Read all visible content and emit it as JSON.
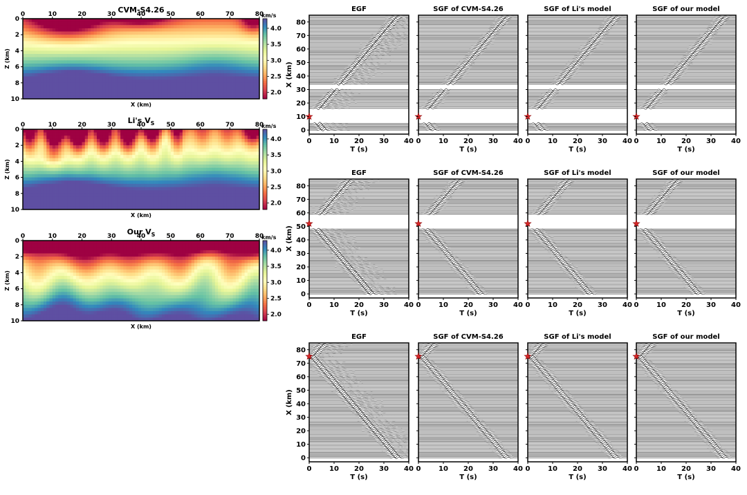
{
  "chart_data": {
    "velocity_panels": [
      {
        "id": "cvm",
        "title": "CVM-S4.26",
        "xlabel": "X (km)",
        "ylabel": "Z (km)",
        "xlim": [
          0,
          80
        ],
        "ylim": [
          0,
          10
        ],
        "xticks": [
          "0",
          "10",
          "20",
          "30",
          "40",
          "50",
          "60",
          "70",
          "80"
        ],
        "yticks": [
          "0",
          "2",
          "4",
          "6",
          "8",
          "10"
        ],
        "colorbar": {
          "unit": "km/s",
          "ticks": [
            "4.0",
            "3.5",
            "3.0",
            "2.5",
            "2.0"
          ],
          "range": [
            1.8,
            4.3
          ]
        }
      },
      {
        "id": "li",
        "title": "Li's V",
        "title_sub": "S",
        "xlabel": "X (km)",
        "ylabel": "Z (km)",
        "xlim": [
          0,
          80
        ],
        "ylim": [
          0,
          10
        ],
        "xticks": [
          "0",
          "10",
          "20",
          "30",
          "40",
          "50",
          "60",
          "70",
          "80"
        ],
        "yticks": [
          "0",
          "2",
          "4",
          "6",
          "8",
          "10"
        ],
        "colorbar": {
          "unit": "km/s",
          "ticks": [
            "4.0",
            "3.5",
            "3.0",
            "2.5",
            "2.0"
          ],
          "range": [
            1.8,
            4.3
          ]
        }
      },
      {
        "id": "ours",
        "title": "Our V",
        "title_sub": "S",
        "xlabel": "X (km)",
        "ylabel": "Z (km)",
        "xlim": [
          0,
          80
        ],
        "ylim": [
          0,
          10
        ],
        "xticks": [
          "0",
          "10",
          "20",
          "30",
          "40",
          "50",
          "60",
          "70",
          "80"
        ],
        "yticks": [
          "0",
          "2",
          "4",
          "6",
          "8",
          "10"
        ],
        "colorbar": {
          "unit": "km/s",
          "ticks": [
            "4.0",
            "3.5",
            "3.0",
            "2.5",
            "2.0"
          ],
          "range": [
            1.8,
            4.3
          ]
        }
      }
    ],
    "waveform_grid": {
      "column_titles": [
        "EGF",
        "SGF of CVM-S4.26",
        "SGF of Li's model",
        "SGF of our model"
      ],
      "xlabel": "T (s)",
      "ylabel": "X (km)",
      "xlim": [
        0,
        40
      ],
      "ylim": [
        -3,
        85
      ],
      "xticks": [
        "0",
        "10",
        "20",
        "30",
        "40"
      ],
      "yticks": [
        "0",
        "10",
        "20",
        "30",
        "40",
        "50",
        "60",
        "70",
        "80"
      ],
      "rows": [
        {
          "source_x": 10,
          "gaps": [
            [
              5,
              15.5
            ],
            [
              30.5,
              33.5
            ]
          ]
        },
        {
          "source_x": 52,
          "gaps": [
            [
              48.5,
              59
            ]
          ]
        },
        {
          "source_x": 75,
          "gaps": []
        }
      ]
    }
  }
}
